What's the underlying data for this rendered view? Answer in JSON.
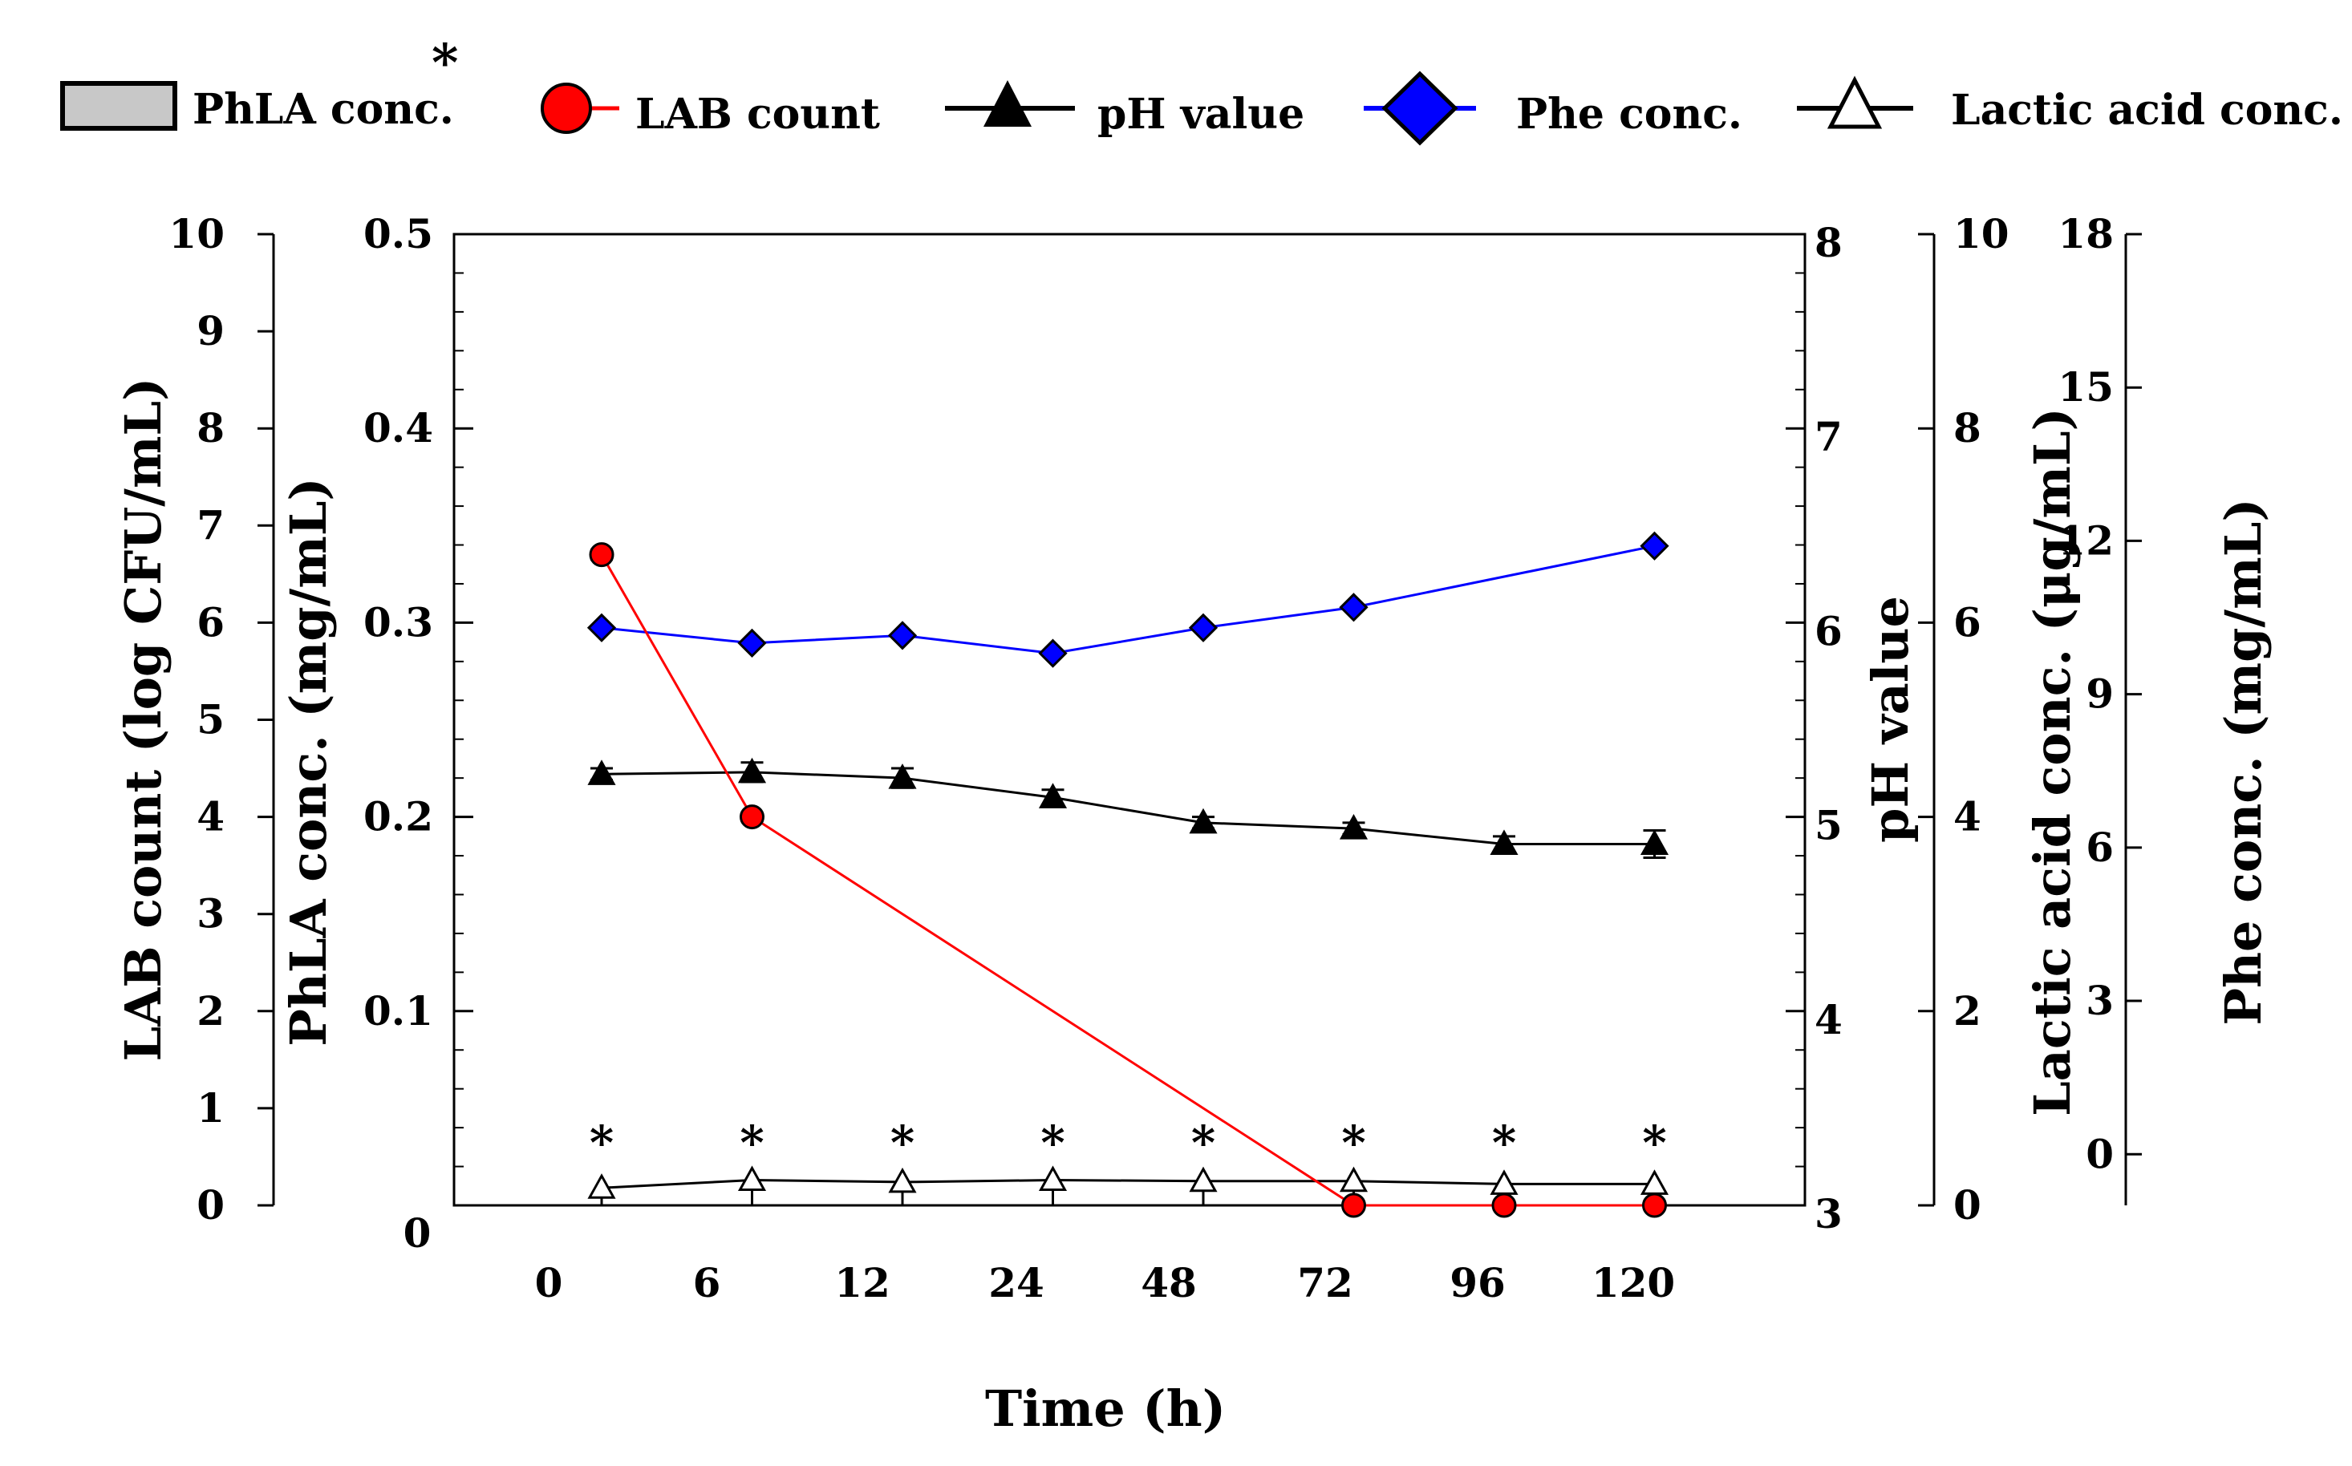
{
  "chart_data": {
    "type": "line",
    "xlabel": "Time (h)",
    "x_categories": [
      "0",
      "6",
      "12",
      "24",
      "48",
      "72",
      "96",
      "120"
    ],
    "x_origin_label": "0",
    "legend": [
      {
        "key": "phla",
        "label": "PhLA conc.",
        "marker": "bar",
        "star": "*"
      },
      {
        "key": "lab",
        "label": "LAB count",
        "marker": "circle",
        "color": "#ff0000",
        "fill": "#ff0000"
      },
      {
        "key": "ph",
        "label": "pH value",
        "marker": "triangle",
        "color": "#000000",
        "fill": "#000000"
      },
      {
        "key": "phe",
        "label": "Phe conc.",
        "marker": "diamond",
        "color": "#0000ff",
        "fill": "#0000ff"
      },
      {
        "key": "lactic",
        "label": "Lactic acid conc.",
        "marker": "triangle-open",
        "color": "#000000",
        "fill": "#ffffff"
      }
    ],
    "axes": {
      "lab": {
        "label": "LAB count (log CFU/mL)",
        "min": 0,
        "max": 10,
        "ticks": [
          "0",
          "1",
          "2",
          "3",
          "4",
          "5",
          "6",
          "7",
          "8",
          "9",
          "10"
        ]
      },
      "phla": {
        "label": "PhLA conc. (mg/mL)",
        "min": 0,
        "max": 0.5,
        "ticks": [
          "0.1",
          "0.2",
          "0.3",
          "0.4",
          "0.5"
        ],
        "zero_label": "0"
      },
      "ph": {
        "label": "pH value",
        "min": 3,
        "max": 8,
        "ticks": [
          "3",
          "4",
          "5",
          "6",
          "7",
          "8"
        ]
      },
      "lactic": {
        "label": "Lactic acid conc. (μg/mL)",
        "min": 0,
        "max": 10,
        "ticks": [
          "0",
          "2",
          "4",
          "6",
          "8",
          "10"
        ]
      },
      "phe": {
        "label": "Phe conc. (mg/mL)",
        "min": -1,
        "max": 18,
        "ticks": [
          "0",
          "3",
          "6",
          "9",
          "12",
          "15",
          "18"
        ]
      }
    },
    "series": [
      {
        "name": "LAB count",
        "axis": "lab",
        "values": [
          6.7,
          4.0,
          null,
          null,
          null,
          0,
          0,
          0
        ],
        "errors": [
          0.05,
          0,
          0,
          0,
          0,
          0,
          0,
          0
        ]
      },
      {
        "name": "pH value",
        "axis": "ph",
        "values": [
          5.22,
          5.23,
          5.2,
          5.1,
          4.97,
          4.94,
          4.86,
          4.86
        ],
        "errors": [
          0.03,
          0.05,
          0.05,
          0.04,
          0.03,
          0.03,
          0.04,
          0.07
        ]
      },
      {
        "name": "Phe conc.",
        "axis": "phe",
        "values": [
          10.3,
          10.0,
          10.15,
          9.8,
          10.3,
          10.7,
          null,
          11.9
        ],
        "errors": [
          0,
          0,
          0,
          0,
          0,
          0,
          0,
          0
        ]
      },
      {
        "name": "Lactic acid conc.",
        "axis": "lactic",
        "values": [
          0.18,
          0.26,
          0.24,
          0.26,
          0.25,
          0.25,
          0.22,
          0.22
        ],
        "errors": [
          0,
          0,
          0,
          0,
          0,
          0,
          0,
          0
        ]
      },
      {
        "name": "PhLA conc.",
        "axis": "phla",
        "values": [
          0,
          0,
          0,
          0,
          0,
          0,
          0,
          0
        ],
        "significance": [
          "*",
          "*",
          "*",
          "*",
          "*",
          "*",
          "*",
          "*"
        ]
      }
    ]
  }
}
